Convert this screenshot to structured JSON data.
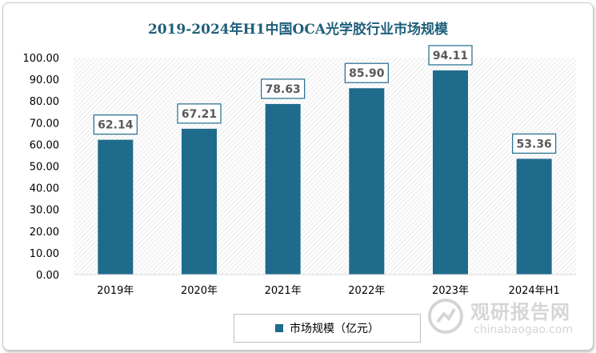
{
  "chart_data": {
    "type": "bar",
    "title": "2019-2024年H1中国OCA光学胶行业市场规模",
    "categories": [
      "2019年",
      "2020年",
      "2021年",
      "2022年",
      "2023年",
      "2024年H1"
    ],
    "series": [
      {
        "name": "市场规模（亿元）",
        "values": [
          62.14,
          67.21,
          78.63,
          85.9,
          94.11,
          53.36
        ],
        "color": "#1f6b8c"
      }
    ],
    "data_labels": [
      "62.14",
      "67.21",
      "78.63",
      "85.90",
      "94.11",
      "53.36"
    ],
    "ylim": [
      0,
      100
    ],
    "yticks": [
      "0.00",
      "10.00",
      "20.00",
      "30.00",
      "40.00",
      "50.00",
      "60.00",
      "70.00",
      "80.00",
      "90.00",
      "100.00"
    ],
    "xlabel": "",
    "ylabel": "",
    "grid": "hatched-background",
    "legend_position": "bottom"
  },
  "watermark": {
    "cn": "观研报告网",
    "en": "chinabaogao.com"
  }
}
